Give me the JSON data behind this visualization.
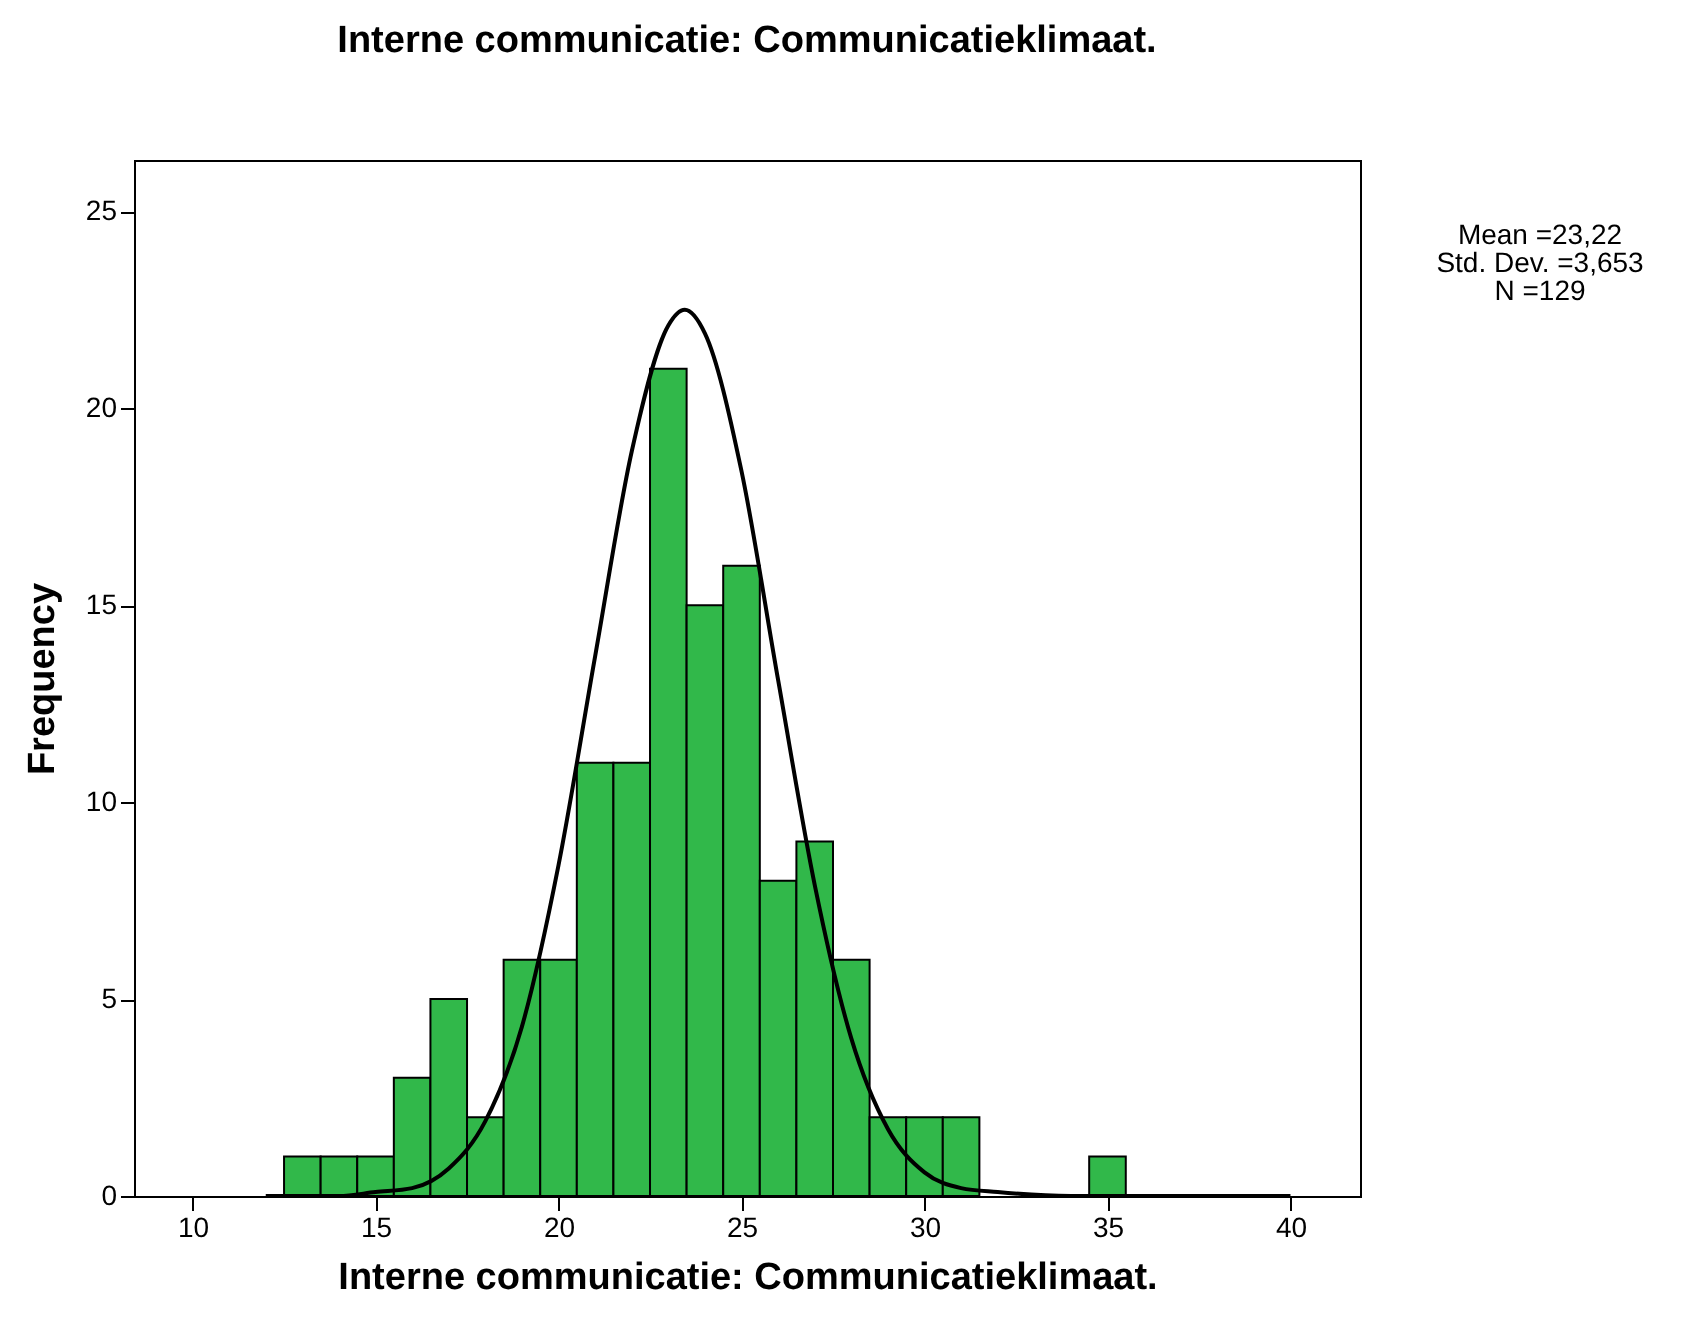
{
  "chart_data": {
    "type": "histogram",
    "title": "Interne communicatie: Communicatieklimaat.",
    "xlabel": "Interne communicatie: Communicatieklimaat.",
    "ylabel": "Frequency",
    "annotations": [
      "Mean =23,22",
      "Std. Dev. =3,653",
      "N =129"
    ],
    "bins": [
      12.5,
      13.5,
      14.5,
      15.5,
      16.5,
      17.5,
      18.5,
      19.5,
      20.5,
      21.5,
      22.5,
      23.5,
      24.5,
      25.5,
      26.5,
      27.5,
      28.5,
      29.5,
      30.5,
      31.5,
      32.5,
      33.5,
      34.5,
      35.5
    ],
    "series": [
      {
        "color": "#31b84a",
        "values": [
          1,
          1,
          1,
          3,
          5,
          2,
          6,
          6,
          11,
          11,
          21,
          15,
          16,
          8,
          9,
          6,
          2,
          2,
          2,
          0,
          0,
          0,
          1
        ]
      },
      {
        "type": "line",
        "color": "#000000",
        "x": [
          12,
          14,
          15,
          16,
          17,
          18,
          19,
          20,
          21,
          22,
          23,
          23.45,
          24,
          25,
          26,
          27,
          28,
          29,
          30,
          31,
          32,
          34,
          36,
          40
        ],
        "values": [
          0,
          0,
          0.1,
          0.2,
          0.7,
          1.9,
          4.3,
          8.4,
          13.7,
          18.9,
          22.1,
          22.5,
          21.9,
          18.4,
          13.1,
          7.9,
          4,
          1.7,
          0.6,
          0.2,
          0.1,
          0,
          0,
          0
        ]
      }
    ],
    "xlim": [
      8.4,
      41.9
    ],
    "xticks": [
      10,
      15,
      20,
      25,
      30,
      35,
      40
    ],
    "ylim": [
      0,
      26.3
    ],
    "yticks": [
      0,
      5,
      10,
      15,
      20,
      25
    ]
  }
}
